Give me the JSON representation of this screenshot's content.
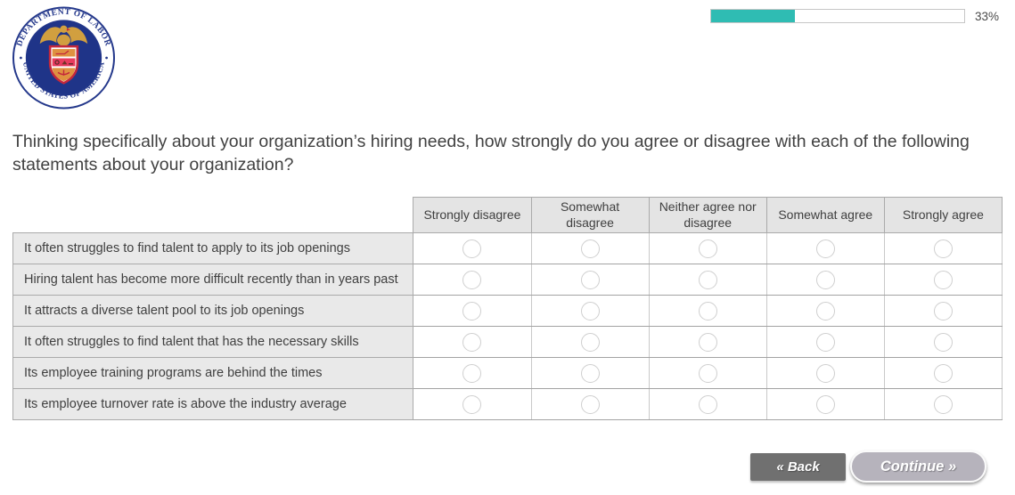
{
  "progress": {
    "percent": 33,
    "percent_label": "33%",
    "fill_color": "#2fbcb3"
  },
  "logo": {
    "name": "United States Department of Labor seal",
    "ring_text_top": "DEPARTMENT OF LABOR",
    "ring_text_bottom": "UNITED STATES OF AMERICA",
    "navy": "#24388b",
    "gold": "#d19f3f",
    "red": "#c4273b"
  },
  "question": {
    "text": "Thinking specifically about your organization’s hiring needs, how strongly do you agree or disagree with each of the following statements about your organization?"
  },
  "matrix": {
    "columns": [
      "Strongly disagree",
      "Somewhat disagree",
      "Neither agree nor disagree",
      "Somewhat agree",
      "Strongly agree"
    ],
    "rows": [
      "It often struggles to find talent to apply to its job openings",
      "Hiring talent has become more difficult recently than in years past",
      "It attracts a diverse talent pool to its job openings",
      "It often struggles to find talent that has the necessary skills",
      "Its employee training programs are behind the times",
      "Its employee turnover rate is above the industry average"
    ]
  },
  "footer": {
    "back_label": "« Back",
    "continue_label": "Continue »"
  }
}
